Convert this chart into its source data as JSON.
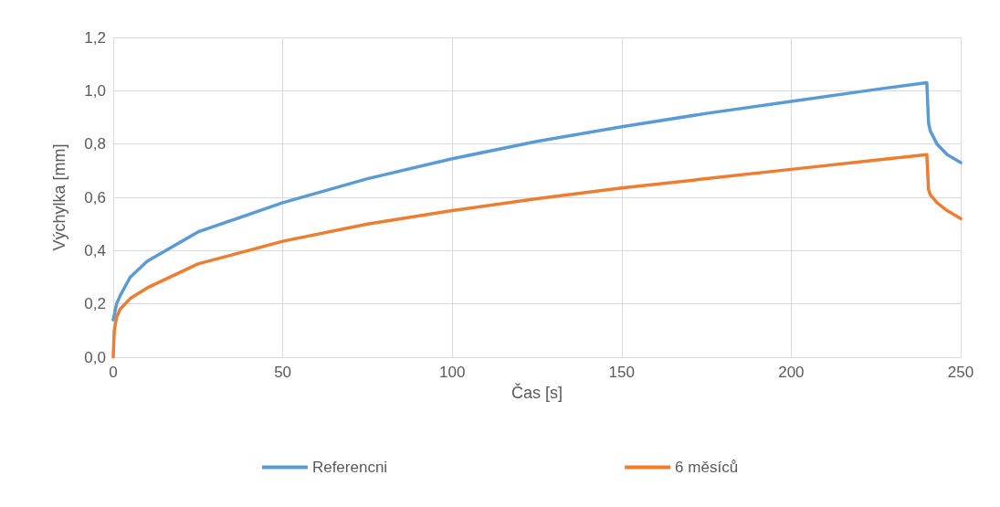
{
  "chart_data": {
    "type": "line",
    "xlabel": "Čas [s]",
    "ylabel": "Výchylka [mm]",
    "xlim": [
      0,
      250
    ],
    "xticks": [
      0,
      50,
      100,
      150,
      200,
      250
    ],
    "ylim": [
      0,
      1.2
    ],
    "yticks": [
      {
        "value": 0,
        "label": "0,0"
      },
      {
        "value": 0.2,
        "label": "0,2"
      },
      {
        "value": 0.4,
        "label": "0,4"
      },
      {
        "value": 0.6,
        "label": "0,6"
      },
      {
        "value": 0.8,
        "label": "0,8"
      },
      {
        "value": 1,
        "label": "1,0"
      },
      {
        "value": 1.2,
        "label": "1,2"
      }
    ],
    "grid": true,
    "legend": "bottom",
    "marker": "none",
    "line_style": "solid",
    "series": [
      {
        "name": "Referencni",
        "color": "#5b9bd5",
        "x": [
          0,
          1,
          2,
          5,
          10,
          25,
          50,
          75,
          100,
          125,
          150,
          175,
          200,
          225,
          240,
          240.5,
          241,
          243,
          246,
          250
        ],
        "values": [
          0.14,
          0.2,
          0.23,
          0.3,
          0.36,
          0.47,
          0.58,
          0.67,
          0.745,
          0.81,
          0.865,
          0.915,
          0.96,
          1.005,
          1.03,
          0.88,
          0.85,
          0.8,
          0.76,
          0.73
        ]
      },
      {
        "name": "6 měsíců",
        "color": "#ed7d31",
        "x": [
          0,
          0.3,
          1,
          2,
          5,
          10,
          25,
          50,
          75,
          100,
          125,
          150,
          175,
          200,
          225,
          240,
          240.5,
          241,
          243,
          246,
          250
        ],
        "values": [
          0,
          0.1,
          0.15,
          0.18,
          0.22,
          0.26,
          0.35,
          0.435,
          0.5,
          0.55,
          0.595,
          0.635,
          0.67,
          0.705,
          0.74,
          0.76,
          0.63,
          0.61,
          0.58,
          0.55,
          0.52
        ]
      }
    ]
  }
}
